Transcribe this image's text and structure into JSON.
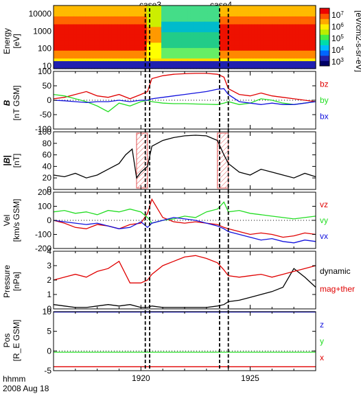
{
  "figure": {
    "time_label": "hhmm",
    "date_label": "2008 Aug 18"
  },
  "case_markers": [
    {
      "label": "case3",
      "t": 1920.3
    },
    {
      "label": "case4",
      "t": 1923.8
    }
  ],
  "colors": {
    "red": "#e00000",
    "green": "#22dd22",
    "blue": "#1010dd",
    "black": "#000000",
    "hatch": "#e05050"
  },
  "chart_data": [
    {
      "type": "heatmap",
      "panel": "energy-spectrogram",
      "ylabel": [
        "Energy",
        "[eV]"
      ],
      "yscale": "log",
      "yticks": [
        "10000",
        "1000",
        "100",
        "10"
      ],
      "colorbar_label": "[eV/cm2-s-sr-eV]",
      "colorbar_ticks": [
        "10^7",
        "10^6",
        "10^5",
        "10^4",
        "10^3"
      ],
      "description_rows": [
        {
          "energy_range": [
            10,
            20
          ],
          "level": "blue"
        },
        {
          "energy_range": [
            20,
            80
          ],
          "level": "yellow-orange"
        },
        {
          "energy_range": [
            80,
            3000
          ],
          "level": "red"
        },
        {
          "energy_range": [
            3000,
            20000
          ],
          "level": "orange-yellow"
        }
      ]
    },
    {
      "type": "line",
      "panel": "B-GSM",
      "ylabel": [
        "B",
        "[nT GSM]"
      ],
      "ylim": [
        -100,
        100
      ],
      "yticks": [
        100,
        50,
        0,
        -50,
        -100
      ],
      "series": [
        {
          "name": "bz",
          "color": "#e00000",
          "x": [
            1916.0,
            1916.5,
            1917.0,
            1917.5,
            1918.0,
            1918.5,
            1919.0,
            1919.5,
            1920.0,
            1920.3,
            1920.5,
            1921.0,
            1921.5,
            1922.0,
            1922.5,
            1923.0,
            1923.5,
            1923.8,
            1924.0,
            1924.5,
            1925.0,
            1925.5,
            1926.0,
            1926.5,
            1927.0,
            1927.5,
            1928.0
          ],
          "values": [
            5,
            10,
            20,
            30,
            15,
            10,
            20,
            5,
            20,
            30,
            75,
            85,
            90,
            92,
            93,
            93,
            90,
            80,
            40,
            20,
            15,
            25,
            15,
            10,
            5,
            0,
            -5
          ]
        },
        {
          "name": "by",
          "color": "#22dd22",
          "x": [
            1916.0,
            1916.5,
            1917.0,
            1917.5,
            1918.0,
            1918.5,
            1919.0,
            1919.5,
            1920.0,
            1920.3,
            1920.5,
            1921.0,
            1921.5,
            1922.0,
            1922.5,
            1923.0,
            1923.5,
            1923.8,
            1924.0,
            1924.5,
            1925.0,
            1925.5,
            1926.0,
            1926.5,
            1927.0,
            1927.5,
            1928.0
          ],
          "values": [
            20,
            15,
            5,
            -5,
            -20,
            -40,
            -10,
            -20,
            -5,
            0,
            -5,
            -10,
            -12,
            -12,
            -13,
            -14,
            -15,
            -10,
            -5,
            -15,
            -10,
            5,
            0,
            -10,
            -15,
            -10,
            -5
          ]
        },
        {
          "name": "bx",
          "color": "#1010dd",
          "x": [
            1916.0,
            1916.5,
            1917.0,
            1917.5,
            1918.0,
            1918.5,
            1919.0,
            1919.5,
            1920.0,
            1920.3,
            1920.5,
            1921.0,
            1921.5,
            1922.0,
            1922.5,
            1923.0,
            1923.5,
            1923.8,
            1924.0,
            1924.5,
            1925.0,
            1925.5,
            1926.0,
            1926.5,
            1927.0,
            1927.5,
            1928.0
          ],
          "values": [
            0,
            -2,
            -5,
            -8,
            -5,
            -5,
            0,
            -5,
            0,
            0,
            5,
            10,
            15,
            20,
            25,
            30,
            38,
            40,
            20,
            -5,
            -10,
            -15,
            -10,
            -15,
            -15,
            -10,
            -5
          ]
        }
      ]
    },
    {
      "type": "line",
      "panel": "B-magnitude",
      "ylabel": [
        "|B|",
        "[nT]"
      ],
      "ylim": [
        0,
        100
      ],
      "yticks": [
        100,
        80,
        60,
        40,
        20,
        0
      ],
      "hatched_intervals": [
        [
          1919.8,
          1920.3
        ],
        [
          1923.5,
          1924.0
        ]
      ],
      "series": [
        {
          "name": "|B|",
          "color": "#000000",
          "x": [
            1916.0,
            1916.5,
            1917.0,
            1917.5,
            1918.0,
            1918.5,
            1919.0,
            1919.3,
            1919.6,
            1919.8,
            1920.0,
            1920.3,
            1920.5,
            1921.0,
            1921.5,
            1922.0,
            1922.5,
            1923.0,
            1923.5,
            1923.8,
            1924.0,
            1924.5,
            1925.0,
            1925.5,
            1926.0,
            1926.5,
            1927.0,
            1927.5,
            1928.0
          ],
          "values": [
            25,
            22,
            28,
            20,
            25,
            35,
            45,
            60,
            70,
            20,
            30,
            40,
            75,
            85,
            90,
            93,
            94,
            93,
            85,
            60,
            45,
            30,
            25,
            35,
            30,
            25,
            20,
            28,
            22
          ]
        }
      ]
    },
    {
      "type": "line",
      "panel": "velocity",
      "ylabel": [
        "Vel",
        "[km/s GSM]"
      ],
      "ylim": [
        -200,
        200
      ],
      "yticks": [
        200,
        100,
        0,
        -100,
        -200
      ],
      "series": [
        {
          "name": "vz",
          "color": "#e00000",
          "x": [
            1916.0,
            1916.5,
            1917.0,
            1917.5,
            1918.0,
            1918.5,
            1919.0,
            1919.5,
            1920.0,
            1920.3,
            1920.5,
            1921.0,
            1921.5,
            1922.0,
            1922.5,
            1923.0,
            1923.5,
            1923.8,
            1924.0,
            1924.5,
            1925.0,
            1925.5,
            1926.0,
            1926.5,
            1927.0,
            1927.5,
            1928.0
          ],
          "values": [
            0,
            -20,
            -50,
            -60,
            -30,
            -40,
            -60,
            -30,
            -20,
            50,
            150,
            20,
            -10,
            -20,
            -10,
            -20,
            -30,
            -50,
            -60,
            -80,
            -100,
            -90,
            -100,
            -120,
            -110,
            -90,
            -100
          ]
        },
        {
          "name": "vy",
          "color": "#22dd22",
          "x": [
            1916.0,
            1916.5,
            1917.0,
            1917.5,
            1918.0,
            1918.5,
            1919.0,
            1919.5,
            1920.0,
            1920.3,
            1920.5,
            1921.0,
            1921.5,
            1922.0,
            1922.5,
            1923.0,
            1923.5,
            1923.8,
            1924.0,
            1924.5,
            1925.0,
            1925.5,
            1926.0,
            1926.5,
            1927.0,
            1927.5,
            1928.0
          ],
          "values": [
            60,
            70,
            50,
            60,
            40,
            70,
            60,
            80,
            60,
            20,
            -20,
            0,
            10,
            30,
            20,
            60,
            80,
            130,
            60,
            70,
            50,
            40,
            30,
            20,
            10,
            20,
            30
          ]
        },
        {
          "name": "vx",
          "color": "#1010dd",
          "x": [
            1916.0,
            1916.5,
            1917.0,
            1917.5,
            1918.0,
            1918.5,
            1919.0,
            1919.5,
            1920.0,
            1920.3,
            1920.5,
            1921.0,
            1921.5,
            1922.0,
            1922.5,
            1923.0,
            1923.5,
            1923.8,
            1924.0,
            1924.5,
            1925.0,
            1925.5,
            1926.0,
            1926.5,
            1927.0,
            1927.5,
            1928.0
          ],
          "values": [
            0,
            -10,
            -20,
            -30,
            -20,
            -40,
            -60,
            -50,
            -10,
            -50,
            -20,
            0,
            20,
            10,
            0,
            -20,
            -40,
            -60,
            -80,
            -100,
            -120,
            -140,
            -130,
            -150,
            -160,
            -140,
            -150
          ]
        }
      ]
    },
    {
      "type": "line",
      "panel": "pressure",
      "ylabel": [
        "Pressure",
        "[nPa]"
      ],
      "ylim": [
        0,
        4
      ],
      "yticks": [
        4,
        3,
        2,
        1,
        0
      ],
      "series": [
        {
          "name": "dynamic",
          "color": "#000000",
          "x": [
            1916.0,
            1916.5,
            1917.0,
            1917.5,
            1918.0,
            1918.5,
            1919.0,
            1919.5,
            1920.0,
            1920.3,
            1920.5,
            1921.0,
            1921.5,
            1922.0,
            1922.5,
            1923.0,
            1923.5,
            1923.8,
            1924.0,
            1924.5,
            1925.0,
            1925.5,
            1926.0,
            1926.5,
            1927.0,
            1927.5,
            1928.0
          ],
          "values": [
            0.3,
            0.2,
            0.1,
            0.1,
            0.2,
            0.3,
            0.2,
            0.3,
            0.1,
            0.1,
            0.2,
            0.1,
            0.1,
            0.1,
            0.1,
            0.1,
            0.2,
            0.3,
            0.5,
            0.6,
            0.8,
            1.0,
            1.2,
            1.5,
            2.8,
            2.2,
            1.5
          ]
        },
        {
          "name": "mag+ther",
          "color": "#e00000",
          "x": [
            1916.0,
            1916.5,
            1917.0,
            1917.5,
            1918.0,
            1918.5,
            1919.0,
            1919.5,
            1920.0,
            1920.3,
            1920.5,
            1921.0,
            1921.5,
            1922.0,
            1922.5,
            1923.0,
            1923.5,
            1923.8,
            1924.0,
            1924.5,
            1925.0,
            1925.5,
            1926.0,
            1926.5,
            1927.0,
            1927.5,
            1928.0
          ],
          "values": [
            2.0,
            2.2,
            2.4,
            2.2,
            2.6,
            2.8,
            3.3,
            1.8,
            1.8,
            2.0,
            2.4,
            3.0,
            3.3,
            3.6,
            3.7,
            3.5,
            3.2,
            2.7,
            2.3,
            2.2,
            2.3,
            2.4,
            2.2,
            2.4,
            2.6,
            2.8,
            3.0
          ]
        }
      ]
    },
    {
      "type": "line",
      "panel": "position",
      "ylabel": [
        "Pos",
        "[R_E GSM]"
      ],
      "ylim": [
        -5,
        10
      ],
      "yticks": [
        10,
        5,
        0,
        -5
      ],
      "series": [
        {
          "name": "z",
          "color": "#1010dd",
          "x": [
            1916.0,
            1928.0
          ],
          "values": [
            9.9,
            9.9
          ]
        },
        {
          "name": "y",
          "color": "#22dd22",
          "x": [
            1916.0,
            1928.0
          ],
          "values": [
            -0.3,
            -0.3
          ]
        },
        {
          "name": "x",
          "color": "#e00000",
          "x": [
            1916.0,
            1928.0
          ],
          "values": [
            -4.0,
            -4.0
          ]
        }
      ]
    }
  ],
  "xaxis": {
    "xlim": [
      1916.0,
      1928.0
    ],
    "tick_labels": [
      {
        "t": 1920.0,
        "label": "1920"
      },
      {
        "t": 1925.0,
        "label": "1925"
      }
    ]
  }
}
